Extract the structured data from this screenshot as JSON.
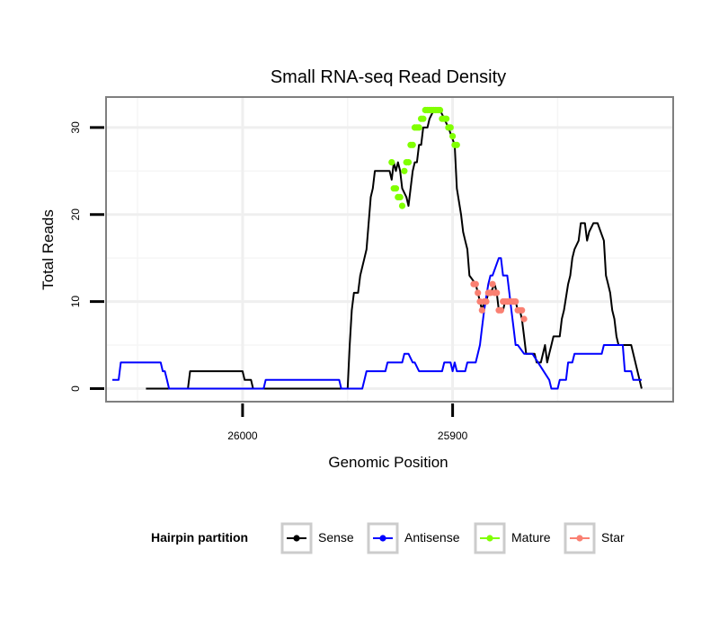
{
  "chart_data": {
    "type": "line",
    "title": "Small RNA-seq Read Density",
    "xlabel": "Genomic Position",
    "ylabel": "Total Reads",
    "xlim": [
      26065,
      25795
    ],
    "ylim": [
      -1.5,
      33.5
    ],
    "x_reversed": true,
    "x_ticks": [
      26000,
      25900
    ],
    "y_ticks": [
      0,
      10,
      20,
      30
    ],
    "grid": true,
    "legend": {
      "title": "Hairpin partition",
      "position": "bottom",
      "entries": [
        {
          "label": "Sense",
          "color": "#000000"
        },
        {
          "label": "Antisense",
          "color": "#0000ff"
        },
        {
          "label": "Mature",
          "color": "#80ff00"
        },
        {
          "label": "Star",
          "color": "#fa8072"
        }
      ]
    },
    "series": [
      {
        "name": "Sense",
        "kind": "line",
        "color": "#000000",
        "x": [
          26046,
          26026,
          26025,
          26005,
          26004,
          26000,
          25999,
          25996,
          25995,
          25950,
          25949,
          25948,
          25947,
          25945,
          25944,
          25942,
          25941,
          25939,
          25938,
          25937,
          25935,
          25931,
          25930,
          25929,
          25928,
          25927,
          25926,
          25925,
          25924,
          25922,
          25921,
          25919,
          25918,
          25917,
          25916,
          25915,
          25914,
          25912,
          25911,
          25909,
          25908,
          25907,
          25906,
          25904,
          25902,
          25899,
          25898,
          25896,
          25895,
          25894,
          25893,
          25892,
          25889,
          25888,
          25887,
          25886,
          25885,
          25884,
          25883,
          25882,
          25880,
          25879,
          25878,
          25876,
          25875,
          25873,
          25872,
          25870,
          25869,
          25868,
          25867,
          25866,
          25865,
          25864,
          25861,
          25860,
          25858,
          25856,
          25855,
          25854,
          25853,
          25852,
          25850,
          25849,
          25848,
          25847,
          25845,
          25844,
          25843,
          25842,
          25840,
          25839,
          25838,
          25837,
          25836,
          25835,
          25833,
          25832,
          25831,
          25828,
          25827,
          25826,
          25825,
          25824,
          25823,
          25822,
          25821,
          25820,
          25819,
          25818,
          25817,
          25816,
          25815,
          25811,
          25810
        ],
        "y": [
          0,
          0,
          2,
          2,
          2,
          2,
          1,
          1,
          0,
          0,
          5,
          9,
          11,
          11,
          13,
          15,
          16,
          22,
          23,
          25,
          25,
          25,
          25,
          24,
          26,
          25,
          26,
          25,
          23,
          22,
          21,
          25,
          26,
          26,
          28,
          28,
          30,
          30,
          31,
          32,
          32,
          32,
          32,
          31,
          30,
          28,
          23,
          20,
          18,
          17,
          16,
          13,
          12,
          11,
          10,
          9,
          10,
          10,
          11,
          11,
          12,
          11,
          9,
          9,
          10,
          10,
          10,
          10,
          9,
          9,
          8,
          6,
          4,
          4,
          4,
          3,
          3,
          5,
          3,
          4,
          5,
          6,
          6,
          6,
          8,
          9,
          12,
          13,
          15,
          16,
          17,
          19,
          19,
          19,
          17,
          18,
          19,
          19,
          19,
          17,
          13,
          12,
          11,
          9,
          8,
          6,
          5,
          5,
          5,
          5,
          5,
          5,
          5,
          1,
          0
        ]
      },
      {
        "name": "Antisense",
        "kind": "line",
        "color": "#0000ff",
        "x": [
          26062,
          26059,
          26058,
          26041,
          26040,
          26039,
          26038,
          26037,
          26036,
          26035,
          25990,
          25989,
          25986,
          25985,
          25983,
          25982,
          25970,
          25969,
          25966,
          25965,
          25964,
          25961,
          25960,
          25958,
          25957,
          25954,
          25953,
          25951,
          25950,
          25949,
          25948,
          25947,
          25944,
          25943,
          25942,
          25941,
          25940,
          25932,
          25931,
          25926,
          25925,
          25924,
          25923,
          25922,
          25921,
          25919,
          25918,
          25916,
          25915,
          25914,
          25913,
          25905,
          25904,
          25901,
          25900,
          25899,
          25898,
          25897,
          25896,
          25895,
          25894,
          25893,
          25892,
          25891,
          25890,
          25889,
          25887,
          25886,
          25885,
          25883,
          25882,
          25881,
          25878,
          25877,
          25876,
          25874,
          25873,
          25872,
          25871,
          25870,
          25869,
          25866,
          25865,
          25863,
          25862,
          25854,
          25853,
          25850,
          25849,
          25846,
          25845,
          25843,
          25842,
          25838,
          25837,
          25835,
          25834,
          25829,
          25828,
          25826,
          25825,
          25819,
          25818,
          25815,
          25814,
          25813,
          25812,
          25811,
          25810
        ],
        "y": [
          1,
          1,
          3,
          3,
          3,
          3,
          2,
          2,
          1,
          0,
          0,
          1,
          1,
          1,
          1,
          1,
          1,
          1,
          1,
          1,
          1,
          1,
          1,
          1,
          1,
          1,
          0,
          0,
          0,
          0,
          0,
          0,
          0,
          0,
          1,
          2,
          2,
          2,
          3,
          3,
          3,
          3,
          4,
          4,
          4,
          3,
          3,
          2,
          2,
          2,
          2,
          2,
          3,
          3,
          2,
          3,
          2,
          2,
          2,
          2,
          2,
          3,
          3,
          3,
          3,
          3,
          5,
          7,
          9,
          12,
          13,
          13,
          15,
          15,
          13,
          13,
          11,
          9,
          7,
          5,
          5,
          4,
          4,
          4,
          4,
          1,
          0,
          0,
          1,
          1,
          3,
          3,
          4,
          4,
          4,
          4,
          4,
          4,
          5,
          5,
          5,
          5,
          2,
          2,
          1,
          1,
          1,
          1,
          1
        ]
      },
      {
        "name": "Mature",
        "kind": "points",
        "color": "#80ff00",
        "x": [
          25929,
          25928,
          25927,
          25926,
          25925,
          25924,
          25923,
          25922,
          25921,
          25920,
          25919,
          25918,
          25917,
          25916,
          25915,
          25914,
          25913,
          25912,
          25911,
          25910,
          25909,
          25908,
          25907,
          25906,
          25905,
          25904,
          25903,
          25902,
          25901,
          25900,
          25899,
          25898
        ],
        "y": [
          26,
          23,
          23,
          22,
          22,
          21,
          25,
          26,
          26,
          28,
          28,
          30,
          30,
          30,
          31,
          31,
          32,
          32,
          32,
          32,
          32,
          32,
          32,
          32,
          31,
          31,
          31,
          30,
          30,
          29,
          28,
          28
        ]
      },
      {
        "name": "Star",
        "kind": "points",
        "color": "#fa8072",
        "x": [
          25890,
          25889,
          25888,
          25887,
          25886,
          25885,
          25884,
          25883,
          25882,
          25881,
          25880,
          25879,
          25878,
          25877,
          25876,
          25875,
          25874,
          25873,
          25872,
          25871,
          25870,
          25869,
          25868,
          25867,
          25866
        ],
        "y": [
          12,
          12,
          11,
          10,
          9,
          10,
          10,
          11,
          11,
          12,
          11,
          11,
          9,
          9,
          10,
          10,
          10,
          10,
          10,
          10,
          10,
          9,
          9,
          9,
          8
        ]
      }
    ]
  }
}
